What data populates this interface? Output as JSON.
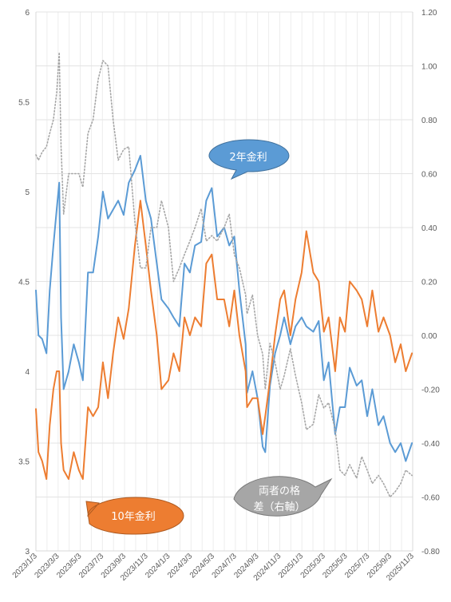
{
  "chart_data": {
    "type": "line",
    "title": "",
    "xlabel": "",
    "ylabel_left": "",
    "ylabel_right": "",
    "x_tick_labels": [
      "2023/1/3",
      "2023/3/3",
      "2023/5/3",
      "2023/7/3",
      "2023/9/3",
      "2023/11/3",
      "2024/1/3",
      "2024/3/3",
      "2024/5/3",
      "2024/7/3",
      "2024/9/3",
      "2024/11/3",
      "2025/1/3",
      "2025/3/3",
      "2025/5/3",
      "2025/7/3",
      "2025/9/3",
      "2025/11/3"
    ],
    "y_left": {
      "min": 3,
      "max": 6,
      "ticks": [
        "3",
        "3.5",
        "4",
        "4.5",
        "5",
        "5.5",
        "6"
      ]
    },
    "y_right": {
      "min": -0.8,
      "max": 1.2,
      "ticks": [
        "-0.80",
        "-0.60",
        "-0.40",
        "-0.20",
        "0.00",
        "0.20",
        "0.40",
        "0.60",
        "0.80",
        "1.00",
        "1.20"
      ]
    },
    "grid": true,
    "series": [
      {
        "axis": "left",
        "color": "#5B9BD5",
        "style": "solid",
        "points": [
          [
            "2023-01-03",
            4.45
          ],
          [
            "2023-01-10",
            4.2
          ],
          [
            "2023-01-20",
            4.18
          ],
          [
            "2023-02-01",
            4.1
          ],
          [
            "2023-02-10",
            4.45
          ],
          [
            "2023-02-20",
            4.7
          ],
          [
            "2023-03-01",
            4.9
          ],
          [
            "2023-03-08",
            5.05
          ],
          [
            "2023-03-13",
            4.3
          ],
          [
            "2023-03-20",
            3.9
          ],
          [
            "2023-04-03",
            4.0
          ],
          [
            "2023-04-17",
            4.15
          ],
          [
            "2023-05-01",
            4.05
          ],
          [
            "2023-05-12",
            3.95
          ],
          [
            "2023-05-26",
            4.55
          ],
          [
            "2023-06-09",
            4.55
          ],
          [
            "2023-06-23",
            4.75
          ],
          [
            "2023-07-06",
            5.0
          ],
          [
            "2023-07-20",
            4.85
          ],
          [
            "2023-08-03",
            4.9
          ],
          [
            "2023-08-17",
            4.95
          ],
          [
            "2023-09-01",
            4.87
          ],
          [
            "2023-09-15",
            5.05
          ],
          [
            "2023-10-02",
            5.12
          ],
          [
            "2023-10-17",
            5.2
          ],
          [
            "2023-11-01",
            4.95
          ],
          [
            "2023-11-15",
            4.85
          ],
          [
            "2023-12-01",
            4.6
          ],
          [
            "2023-12-14",
            4.4
          ],
          [
            "2024-01-02",
            4.35
          ],
          [
            "2024-01-16",
            4.3
          ],
          [
            "2024-02-01",
            4.25
          ],
          [
            "2024-02-15",
            4.6
          ],
          [
            "2024-03-01",
            4.55
          ],
          [
            "2024-03-15",
            4.7
          ],
          [
            "2024-04-01",
            4.72
          ],
          [
            "2024-04-15",
            4.95
          ],
          [
            "2024-04-30",
            5.02
          ],
          [
            "2024-05-15",
            4.75
          ],
          [
            "2024-06-03",
            4.8
          ],
          [
            "2024-06-17",
            4.7
          ],
          [
            "2024-07-01",
            4.75
          ],
          [
            "2024-07-15",
            4.45
          ],
          [
            "2024-08-01",
            4.15
          ],
          [
            "2024-08-05",
            3.88
          ],
          [
            "2024-08-20",
            4.0
          ],
          [
            "2024-09-03",
            3.85
          ],
          [
            "2024-09-17",
            3.58
          ],
          [
            "2024-09-24",
            3.55
          ],
          [
            "2024-10-07",
            3.92
          ],
          [
            "2024-10-21",
            4.1
          ],
          [
            "2024-11-04",
            4.2
          ],
          [
            "2024-11-15",
            4.3
          ],
          [
            "2024-12-02",
            4.15
          ],
          [
            "2024-12-16",
            4.25
          ],
          [
            "2025-01-02",
            4.3
          ],
          [
            "2025-01-15",
            4.25
          ],
          [
            "2025-02-03",
            4.22
          ],
          [
            "2025-02-18",
            4.28
          ],
          [
            "2025-03-04",
            3.95
          ],
          [
            "2025-03-17",
            4.05
          ],
          [
            "2025-04-04",
            3.65
          ],
          [
            "2025-04-17",
            3.8
          ],
          [
            "2025-05-01",
            3.8
          ],
          [
            "2025-05-14",
            4.02
          ],
          [
            "2025-06-02",
            3.92
          ],
          [
            "2025-06-16",
            3.95
          ],
          [
            "2025-07-01",
            3.75
          ],
          [
            "2025-07-15",
            3.9
          ],
          [
            "2025-08-01",
            3.7
          ],
          [
            "2025-08-15",
            3.75
          ],
          [
            "2025-09-02",
            3.6
          ],
          [
            "2025-09-16",
            3.55
          ],
          [
            "2025-10-01",
            3.6
          ],
          [
            "2025-10-15",
            3.5
          ],
          [
            "2025-11-01",
            3.6
          ]
        ]
      },
      {
        "axis": "left",
        "color": "#ED7D31",
        "style": "solid",
        "points": [
          [
            "2023-01-03",
            3.79
          ],
          [
            "2023-01-10",
            3.55
          ],
          [
            "2023-01-20",
            3.5
          ],
          [
            "2023-02-01",
            3.4
          ],
          [
            "2023-02-10",
            3.7
          ],
          [
            "2023-02-20",
            3.9
          ],
          [
            "2023-03-01",
            4.0
          ],
          [
            "2023-03-08",
            4.0
          ],
          [
            "2023-03-13",
            3.6
          ],
          [
            "2023-03-20",
            3.45
          ],
          [
            "2023-04-03",
            3.4
          ],
          [
            "2023-04-17",
            3.55
          ],
          [
            "2023-05-01",
            3.45
          ],
          [
            "2023-05-12",
            3.4
          ],
          [
            "2023-05-26",
            3.8
          ],
          [
            "2023-06-09",
            3.75
          ],
          [
            "2023-06-23",
            3.8
          ],
          [
            "2023-07-06",
            4.05
          ],
          [
            "2023-07-20",
            3.85
          ],
          [
            "2023-08-03",
            4.1
          ],
          [
            "2023-08-17",
            4.3
          ],
          [
            "2023-09-01",
            4.18
          ],
          [
            "2023-09-15",
            4.35
          ],
          [
            "2023-10-02",
            4.7
          ],
          [
            "2023-10-17",
            4.95
          ],
          [
            "2023-11-01",
            4.7
          ],
          [
            "2023-11-15",
            4.45
          ],
          [
            "2023-12-01",
            4.2
          ],
          [
            "2023-12-14",
            3.9
          ],
          [
            "2024-01-02",
            3.95
          ],
          [
            "2024-01-16",
            4.1
          ],
          [
            "2024-02-01",
            4.0
          ],
          [
            "2024-02-15",
            4.3
          ],
          [
            "2024-03-01",
            4.2
          ],
          [
            "2024-03-15",
            4.3
          ],
          [
            "2024-04-01",
            4.25
          ],
          [
            "2024-04-15",
            4.6
          ],
          [
            "2024-04-30",
            4.65
          ],
          [
            "2024-05-15",
            4.4
          ],
          [
            "2024-06-03",
            4.4
          ],
          [
            "2024-06-17",
            4.25
          ],
          [
            "2024-07-01",
            4.45
          ],
          [
            "2024-07-15",
            4.2
          ],
          [
            "2024-08-01",
            4.0
          ],
          [
            "2024-08-05",
            3.8
          ],
          [
            "2024-08-20",
            3.85
          ],
          [
            "2024-09-03",
            3.85
          ],
          [
            "2024-09-17",
            3.65
          ],
          [
            "2024-09-24",
            3.75
          ],
          [
            "2024-10-07",
            3.95
          ],
          [
            "2024-10-21",
            4.2
          ],
          [
            "2024-11-04",
            4.4
          ],
          [
            "2024-11-15",
            4.45
          ],
          [
            "2024-12-02",
            4.2
          ],
          [
            "2024-12-16",
            4.4
          ],
          [
            "2025-01-02",
            4.55
          ],
          [
            "2025-01-15",
            4.78
          ],
          [
            "2025-02-03",
            4.55
          ],
          [
            "2025-02-18",
            4.5
          ],
          [
            "2025-03-04",
            4.22
          ],
          [
            "2025-03-17",
            4.3
          ],
          [
            "2025-04-04",
            4.0
          ],
          [
            "2025-04-17",
            4.3
          ],
          [
            "2025-05-01",
            4.22
          ],
          [
            "2025-05-14",
            4.5
          ],
          [
            "2025-06-02",
            4.45
          ],
          [
            "2025-06-16",
            4.4
          ],
          [
            "2025-07-01",
            4.25
          ],
          [
            "2025-07-15",
            4.45
          ],
          [
            "2025-08-01",
            4.22
          ],
          [
            "2025-08-15",
            4.3
          ],
          [
            "2025-09-02",
            4.2
          ],
          [
            "2025-09-16",
            4.05
          ],
          [
            "2025-10-01",
            4.15
          ],
          [
            "2025-10-15",
            4.0
          ],
          [
            "2025-11-01",
            4.1
          ]
        ]
      },
      {
        "axis": "right",
        "color": "#A6A6A6",
        "style": "dotted",
        "points": [
          [
            "2023-01-03",
            0.67
          ],
          [
            "2023-01-10",
            0.65
          ],
          [
            "2023-01-20",
            0.68
          ],
          [
            "2023-02-01",
            0.7
          ],
          [
            "2023-02-10",
            0.75
          ],
          [
            "2023-02-20",
            0.8
          ],
          [
            "2023-03-01",
            0.9
          ],
          [
            "2023-03-08",
            1.05
          ],
          [
            "2023-03-13",
            0.7
          ],
          [
            "2023-03-20",
            0.45
          ],
          [
            "2023-04-03",
            0.6
          ],
          [
            "2023-04-17",
            0.6
          ],
          [
            "2023-05-01",
            0.6
          ],
          [
            "2023-05-12",
            0.55
          ],
          [
            "2023-05-26",
            0.75
          ],
          [
            "2023-06-09",
            0.8
          ],
          [
            "2023-06-23",
            0.95
          ],
          [
            "2023-07-06",
            1.02
          ],
          [
            "2023-07-20",
            1.0
          ],
          [
            "2023-08-03",
            0.8
          ],
          [
            "2023-08-17",
            0.65
          ],
          [
            "2023-09-01",
            0.69
          ],
          [
            "2023-09-15",
            0.7
          ],
          [
            "2023-10-02",
            0.42
          ],
          [
            "2023-10-17",
            0.25
          ],
          [
            "2023-11-01",
            0.25
          ],
          [
            "2023-11-15",
            0.4
          ],
          [
            "2023-12-01",
            0.4
          ],
          [
            "2023-12-14",
            0.5
          ],
          [
            "2024-01-02",
            0.4
          ],
          [
            "2024-01-16",
            0.2
          ],
          [
            "2024-02-01",
            0.25
          ],
          [
            "2024-02-15",
            0.3
          ],
          [
            "2024-03-01",
            0.35
          ],
          [
            "2024-03-15",
            0.4
          ],
          [
            "2024-04-01",
            0.47
          ],
          [
            "2024-04-15",
            0.35
          ],
          [
            "2024-04-30",
            0.37
          ],
          [
            "2024-05-15",
            0.35
          ],
          [
            "2024-06-03",
            0.4
          ],
          [
            "2024-06-17",
            0.45
          ],
          [
            "2024-07-01",
            0.3
          ],
          [
            "2024-07-15",
            0.25
          ],
          [
            "2024-08-01",
            0.15
          ],
          [
            "2024-08-05",
            0.08
          ],
          [
            "2024-08-20",
            0.15
          ],
          [
            "2024-09-03",
            0.0
          ],
          [
            "2024-09-17",
            -0.07
          ],
          [
            "2024-09-24",
            -0.2
          ],
          [
            "2024-10-07",
            -0.03
          ],
          [
            "2024-10-21",
            -0.1
          ],
          [
            "2024-11-04",
            -0.2
          ],
          [
            "2024-11-15",
            -0.15
          ],
          [
            "2024-12-02",
            -0.05
          ],
          [
            "2024-12-16",
            -0.15
          ],
          [
            "2025-01-02",
            -0.25
          ],
          [
            "2025-01-15",
            -0.35
          ],
          [
            "2025-02-03",
            -0.33
          ],
          [
            "2025-02-18",
            -0.22
          ],
          [
            "2025-03-04",
            -0.27
          ],
          [
            "2025-03-17",
            -0.25
          ],
          [
            "2025-04-04",
            -0.35
          ],
          [
            "2025-04-17",
            -0.5
          ],
          [
            "2025-05-01",
            -0.52
          ],
          [
            "2025-05-14",
            -0.48
          ],
          [
            "2025-06-02",
            -0.53
          ],
          [
            "2025-06-16",
            -0.45
          ],
          [
            "2025-07-01",
            -0.5
          ],
          [
            "2025-07-15",
            -0.55
          ],
          [
            "2025-08-01",
            -0.52
          ],
          [
            "2025-08-15",
            -0.55
          ],
          [
            "2025-09-02",
            -0.6
          ],
          [
            "2025-09-16",
            -0.58
          ],
          [
            "2025-10-01",
            -0.55
          ],
          [
            "2025-10-15",
            -0.5
          ],
          [
            "2025-11-01",
            -0.52
          ]
        ]
      }
    ],
    "callouts": [
      {
        "id": "callout-2y",
        "text": "2年金利",
        "fill": "#5B9BD5",
        "text_color": "#ffffff"
      },
      {
        "id": "callout-10y",
        "text": "10年金利",
        "fill": "#ED7D31",
        "text_color": "#ffffff"
      },
      {
        "id": "callout-spread",
        "lines": [
          "両者の格",
          "差（右軸）"
        ],
        "fill": "#A6A6A6",
        "text_color": "#ffffff"
      }
    ]
  }
}
